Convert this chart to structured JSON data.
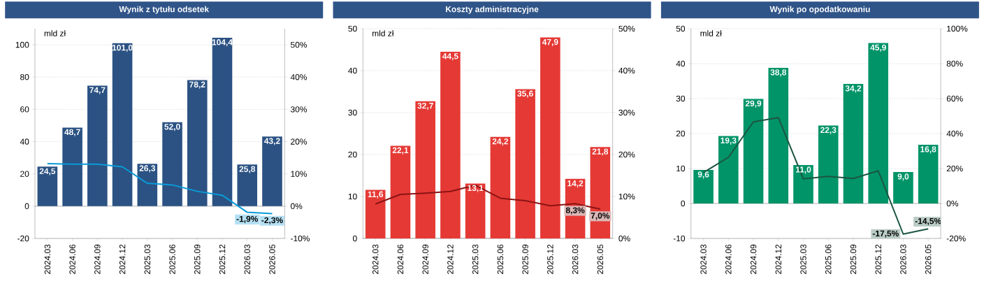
{
  "chart_data": [
    {
      "type": "bar",
      "title": "Wynik z tytułu odsetek",
      "ylabel": "mld zł",
      "grid": "y",
      "categories": [
        "2024.03",
        "2024.06",
        "2024.09",
        "2024.12",
        "2025.03",
        "2025.06",
        "2025.09",
        "2025.12",
        "2026.03",
        "2026.05"
      ],
      "series": [
        {
          "type": "bar",
          "color": "#2b5283",
          "values": [
            24.5,
            48.7,
            74.7,
            101.0,
            26.3,
            52.0,
            78.2,
            104.4,
            25.8,
            43.2
          ],
          "value_labels": [
            "24,5",
            "48,7",
            "74,7",
            "101,0",
            "26,3",
            "52,0",
            "78,2",
            "104,4",
            "25,8",
            "43,2"
          ]
        },
        {
          "type": "line",
          "axis": "y2",
          "color": "#0a9ad8",
          "values": [
            13.2,
            13.0,
            13.0,
            12.2,
            7.1,
            6.6,
            4.6,
            3.4,
            -1.9,
            -2.3
          ],
          "value_labels": [
            null,
            null,
            null,
            null,
            null,
            null,
            null,
            null,
            "-1,9%",
            "-2,3%"
          ]
        }
      ],
      "ylim": [
        -20,
        110
      ],
      "yticks": [
        -20,
        0,
        20,
        40,
        60,
        80,
        100
      ],
      "y2lim": [
        -10,
        55
      ],
      "y2ticks": [
        {
          "value": -10,
          "label": "-10%"
        },
        {
          "value": 0,
          "label": "0%"
        },
        {
          "value": 10,
          "label": "10%"
        },
        {
          "value": 20,
          "label": "20%"
        },
        {
          "value": 30,
          "label": "30%"
        },
        {
          "value": 40,
          "label": "40%"
        },
        {
          "value": 50,
          "label": "50%"
        }
      ]
    },
    {
      "type": "bar",
      "title": "Koszty administracyjne",
      "ylabel": "mld zł",
      "grid": "y",
      "categories": [
        "2024.03",
        "2024.06",
        "2024.09",
        "2024.12",
        "2025.03",
        "2025.06",
        "2025.09",
        "2025.12",
        "2026.03",
        "2026.05"
      ],
      "series": [
        {
          "type": "bar",
          "color": "#e53935",
          "values": [
            11.6,
            22.1,
            32.7,
            44.5,
            13.1,
            24.2,
            35.6,
            47.9,
            14.2,
            21.8
          ],
          "value_labels": [
            "11,6",
            "22,1",
            "32,7",
            "44,5",
            "13,1",
            "24,2",
            "35,6",
            "47,9",
            "14,2",
            "21,8"
          ]
        },
        {
          "type": "line",
          "axis": "y2",
          "color": "#8b1414",
          "values": [
            8.2,
            10.5,
            10.8,
            11.2,
            12.7,
            9.6,
            9.0,
            7.8,
            8.3,
            7.0
          ],
          "value_labels": [
            null,
            null,
            null,
            null,
            null,
            null,
            null,
            null,
            "8,3%",
            "7,0%"
          ]
        }
      ],
      "ylim": [
        0,
        50
      ],
      "yticks": [
        0,
        10,
        20,
        30,
        40,
        50
      ],
      "y2lim": [
        0,
        50
      ],
      "y2ticks": [
        {
          "value": 0,
          "label": "0%"
        },
        {
          "value": 10,
          "label": "10%"
        },
        {
          "value": 20,
          "label": "20%"
        },
        {
          "value": 30,
          "label": "30%"
        },
        {
          "value": 40,
          "label": "40%"
        },
        {
          "value": 50,
          "label": "50%"
        }
      ]
    },
    {
      "type": "bar",
      "title": "Wynik po opodatkowaniu",
      "ylabel": "mld zł",
      "grid": "y",
      "categories": [
        "2024.03",
        "2024.06",
        "2024.09",
        "2024.12",
        "2025.03",
        "2025.06",
        "2025.09",
        "2025.12",
        "2026.03",
        "2026.05"
      ],
      "series": [
        {
          "type": "bar",
          "color": "#009468",
          "values": [
            9.6,
            19.3,
            29.9,
            38.8,
            11.0,
            22.3,
            34.2,
            45.9,
            9.0,
            16.8
          ],
          "value_labels": [
            "9,6",
            "19,3",
            "29,9",
            "38,8",
            "11,0",
            "22,3",
            "34,2",
            "45,9",
            "9,0",
            "16,8"
          ]
        },
        {
          "type": "line",
          "axis": "y2",
          "color": "#1c5641",
          "values": [
            17.7,
            26.4,
            46.7,
            49.1,
            14.1,
            15.5,
            14.3,
            18.7,
            -17.5,
            -14.5
          ],
          "value_labels": [
            null,
            null,
            null,
            null,
            null,
            null,
            null,
            null,
            "-17,5%",
            "-14,5%"
          ]
        }
      ],
      "ylim": [
        -10,
        50
      ],
      "yticks": [
        -10,
        0,
        10,
        20,
        30,
        40,
        50
      ],
      "y2lim": [
        -20,
        100
      ],
      "y2ticks": [
        {
          "value": -20,
          "label": "-20%"
        },
        {
          "value": 0,
          "label": "0%"
        },
        {
          "value": 20,
          "label": "20%"
        },
        {
          "value": 40,
          "label": "40%"
        },
        {
          "value": 60,
          "label": "60%"
        },
        {
          "value": 80,
          "label": "80%"
        },
        {
          "value": 100,
          "label": "100%"
        }
      ]
    }
  ]
}
